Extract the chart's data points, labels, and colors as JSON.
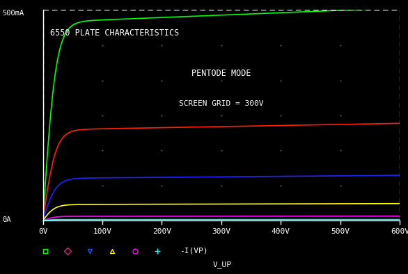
{
  "title": "6550 PLATE CHARACTERISTICS",
  "subtitle1": "PENTODE MODE",
  "subtitle2": "SCREEN GRID = 300V",
  "xlabel": "V_UP",
  "ylabel_top": "500mA",
  "ylabel_bottom": "0A",
  "xmin": 0,
  "xmax": 600,
  "ymin": 0,
  "ymax": 500,
  "bg_color": "#000000",
  "text_color": "#ffffff",
  "dashed_color": "#ffffff",
  "curves": [
    {
      "color": "#00ff00",
      "Isat": 470,
      "knee": 22,
      "slope": 0.00012
    },
    {
      "color": "#ff2200",
      "Isat": 215,
      "knee": 22,
      "slope": 0.00012
    },
    {
      "color": "#2222ff",
      "Isat": 100,
      "knee": 22,
      "slope": 0.00012
    },
    {
      "color": "#ffff00",
      "Isat": 38,
      "knee": 20,
      "slope": 0.0001
    },
    {
      "color": "#ff00ff",
      "Isat": 10,
      "knee": 18,
      "slope": 8e-05
    },
    {
      "color": "#00ffff",
      "Isat": 2.5,
      "knee": 15,
      "slope": 6e-05
    }
  ],
  "legend_symbols": [
    {
      "marker": "s",
      "color": "#00ff00"
    },
    {
      "marker": "D",
      "color": "#dd2288"
    },
    {
      "marker": "v",
      "color": "#2255ff"
    },
    {
      "marker": "^",
      "color": "#ffff00"
    },
    {
      "marker": "o",
      "color": "#ff00ff"
    },
    {
      "marker": "+",
      "color": "#00ffff"
    }
  ],
  "legend_text": "-I(VP)",
  "xticks": [
    0,
    100,
    200,
    300,
    400,
    500,
    600
  ],
  "xtick_labels": [
    "0V",
    "100V",
    "200V",
    "300V",
    "400V",
    "500V",
    "600V"
  ],
  "dot_grid_x": [
    100,
    200,
    300,
    400,
    500
  ],
  "dot_grid_y": [
    83,
    166,
    249,
    332,
    415
  ],
  "dot_color": "#444444"
}
